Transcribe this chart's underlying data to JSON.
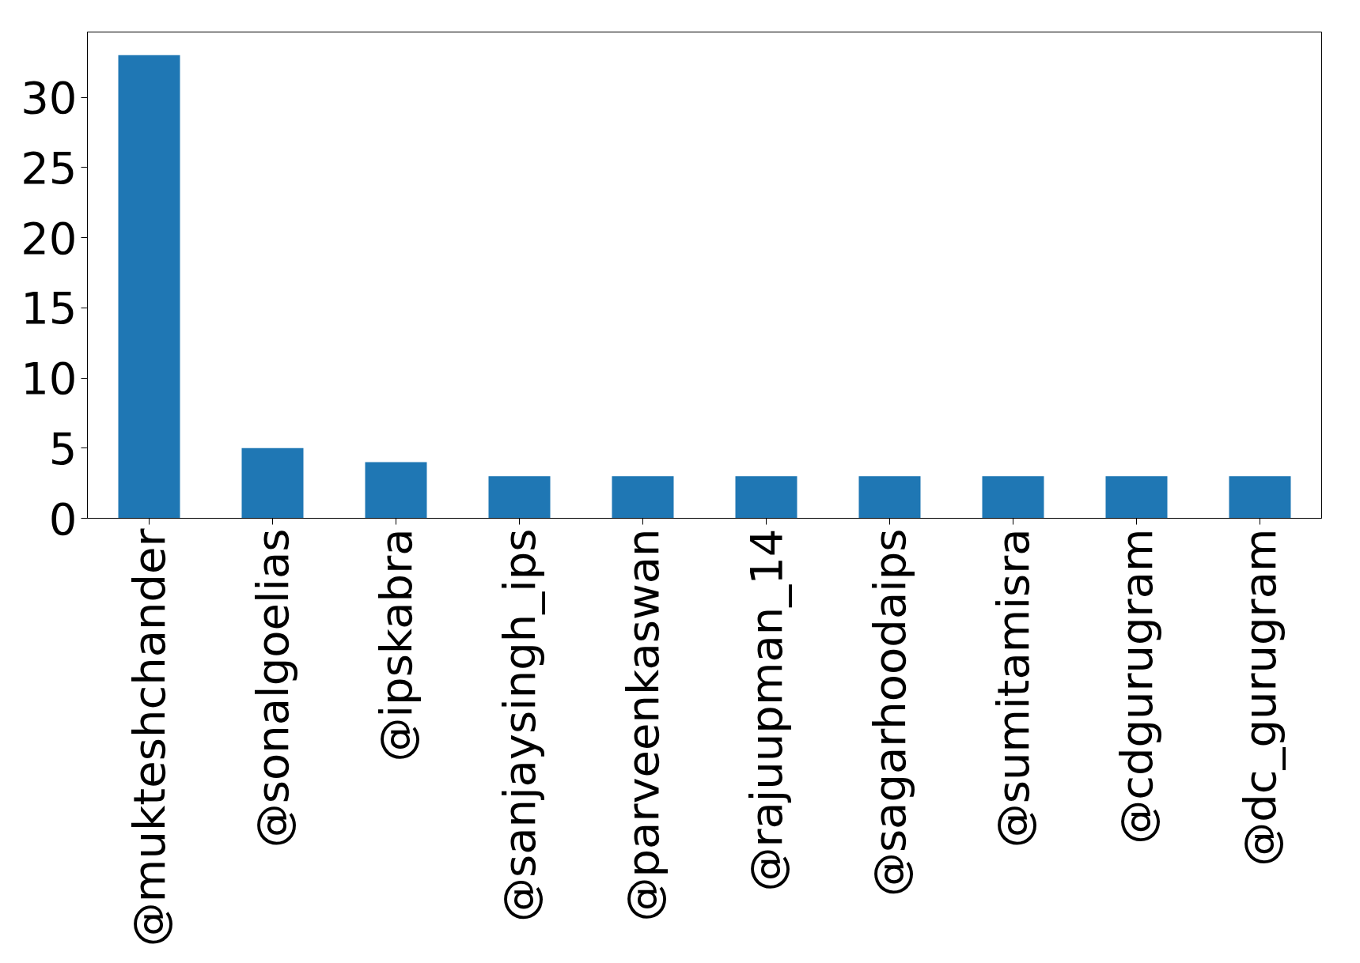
{
  "chart_data": {
    "type": "bar",
    "categories": [
      "@mukteshchander",
      "@sonalgoelias",
      "@ipskabra",
      "@sanjaysingh_ips",
      "@parveenkaswan",
      "@rajuupman_14",
      "@sagarhoodaips",
      "@sumitamisra",
      "@cdgurugram",
      "@dc_gurugram"
    ],
    "values": [
      33,
      5,
      4,
      3,
      3,
      3,
      3,
      3,
      3,
      3
    ],
    "color": "#1f77b4",
    "ylim": [
      0,
      34.65
    ],
    "yticks": [
      0,
      5,
      10,
      15,
      20,
      25,
      30
    ],
    "grid": false
  }
}
